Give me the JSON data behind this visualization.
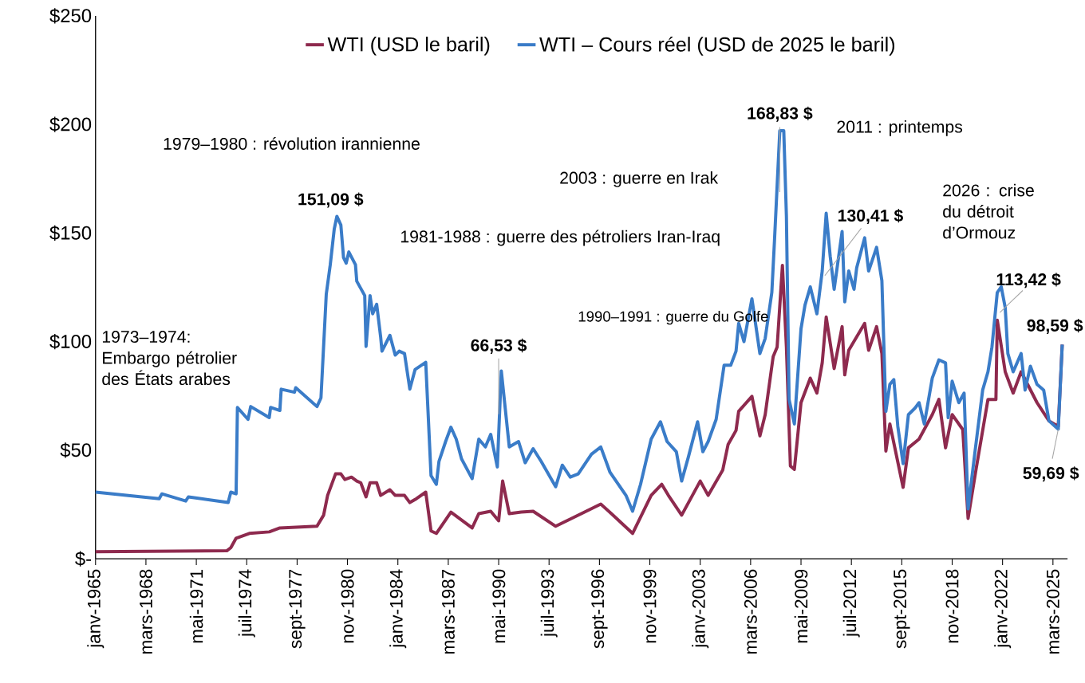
{
  "chart_data": {
    "type": "line",
    "xlim": [
      "1965-01",
      "2026-02"
    ],
    "ylim": [
      0,
      250
    ],
    "xticks": [
      {
        "value": "1965-01",
        "label": "janv-1965"
      },
      {
        "value": "1968-03",
        "label": "mars-1968"
      },
      {
        "value": "1971-05",
        "label": "mai-1971"
      },
      {
        "value": "1974-07",
        "label": "juil-1974"
      },
      {
        "value": "1977-09",
        "label": "sept-1977"
      },
      {
        "value": "1980-11",
        "label": "nov-1980"
      },
      {
        "value": "1984-01",
        "label": "janv-1984"
      },
      {
        "value": "1987-03",
        "label": "mars-1987"
      },
      {
        "value": "1990-05",
        "label": "mai-1990"
      },
      {
        "value": "1993-07",
        "label": "juil-1993"
      },
      {
        "value": "1996-09",
        "label": "sept-1996"
      },
      {
        "value": "1999-11",
        "label": "nov-1999"
      },
      {
        "value": "2003-01",
        "label": "janv-2003"
      },
      {
        "value": "2006-03",
        "label": "mars-2006"
      },
      {
        "value": "2009-05",
        "label": "mai-2009"
      },
      {
        "value": "2012-07",
        "label": "juil-2012"
      },
      {
        "value": "2015-09",
        "label": "sept-2015"
      },
      {
        "value": "2018-11",
        "label": "nov-2018"
      },
      {
        "value": "2022-01",
        "label": "janv-2022"
      },
      {
        "value": "2025-03",
        "label": "mars-2025"
      }
    ],
    "yticks": [
      {
        "value": 0,
        "label": "$-"
      },
      {
        "value": 50,
        "label": "$50"
      },
      {
        "value": 100,
        "label": "$100"
      },
      {
        "value": 150,
        "label": "$150"
      },
      {
        "value": 200,
        "label": "$200"
      },
      {
        "value": 250,
        "label": "$250"
      }
    ],
    "legend": "top",
    "series": [
      {
        "name": "WTI (USD le baril)",
        "color": "#8e2a4e",
        "x": [
          "1965-01",
          "1973-04",
          "1973-07",
          "1973-11",
          "1974-09",
          "1975-12",
          "1976-08",
          "1978-12",
          "1979-05",
          "1979-08",
          "1980-02",
          "1980-06",
          "1980-09",
          "1981-02",
          "1981-06",
          "1981-09",
          "1982-01",
          "1982-04",
          "1982-09",
          "1982-12",
          "1983-07",
          "1983-11",
          "1984-06",
          "1984-10",
          "1985-03",
          "1985-10",
          "1986-02",
          "1986-06",
          "1987-05",
          "1988-09",
          "1989-02",
          "1989-11",
          "1990-05",
          "1990-08",
          "1991-01",
          "1991-10",
          "1992-07",
          "1993-12",
          "1994-12",
          "1996-10",
          "1997-06",
          "1998-10",
          "1999-12",
          "2000-08",
          "2001-01",
          "2001-11",
          "2003-01",
          "2003-07",
          "2004-06",
          "2004-10",
          "2005-04",
          "2005-06",
          "2006-04",
          "2006-10",
          "2007-02",
          "2007-08",
          "2007-11",
          "2008-03",
          "2008-06",
          "2008-09",
          "2008-12",
          "2009-05",
          "2009-12",
          "2010-05",
          "2010-09",
          "2010-12",
          "2011-06",
          "2011-12",
          "2012-02",
          "2012-05",
          "2013-05",
          "2013-08",
          "2014-02",
          "2014-06",
          "2014-09",
          "2014-12",
          "2015-10",
          "2016-02",
          "2016-10",
          "2017-08",
          "2018-01",
          "2018-06",
          "2018-11",
          "2019-07",
          "2019-11",
          "2020-05",
          "2021-02",
          "2021-08",
          "2021-09",
          "2022-03",
          "2022-09",
          "2023-03",
          "2024-03",
          "2024-12",
          "2025-07",
          "2025-10"
        ],
        "values": [
          3.3,
          3.7,
          5.1,
          9.5,
          11.7,
          12.4,
          14.2,
          15.0,
          20.1,
          29.2,
          39.1,
          39.1,
          36.5,
          37.6,
          35.8,
          35.0,
          28.5,
          35.0,
          35.0,
          29.2,
          31.8,
          29.2,
          29.2,
          25.9,
          27.7,
          30.7,
          12.8,
          11.7,
          21.5,
          14.2,
          20.8,
          21.9,
          17.5,
          35.8,
          20.8,
          21.5,
          21.9,
          15.0,
          18.6,
          25.2,
          20.8,
          11.7,
          29.2,
          34.3,
          29.2,
          20.1,
          35.8,
          29.2,
          40.9,
          52.6,
          59.1,
          67.9,
          74.8,
          56.6,
          66.4,
          93.1,
          97.5,
          135.1,
          97.5,
          42.7,
          41.2,
          71.9,
          83.2,
          76.3,
          90.2,
          111.3,
          87.6,
          106.9,
          84.7,
          96.0,
          108.4,
          96.0,
          106.9,
          94.5,
          49.6,
          62.1,
          32.9,
          51.1,
          55.1,
          66.4,
          73.4,
          51.1,
          66.4,
          59.5,
          18.6,
          41.2,
          73.4,
          73.4,
          109.9,
          86.1,
          76.3,
          86.1,
          71.9,
          63.5,
          61.0,
          98.6
        ]
      },
      {
        "name": "WTI – Cours réel (USD de 2025 le baril)",
        "color": "#3a7cc8",
        "x": [
          "1965-01",
          "1969-01",
          "1969-03",
          "1970-09",
          "1970-11",
          "1973-05",
          "1973-07",
          "1973-11",
          "1973-12",
          "1974-08",
          "1974-10",
          "1975-12",
          "1976-01",
          "1976-08",
          "1976-09",
          "1977-07",
          "1977-08",
          "1978-12",
          "1979-03",
          "1979-07",
          "1979-10",
          "1980-01",
          "1980-03",
          "1980-06",
          "1980-08",
          "1980-10",
          "1980-12",
          "1981-05",
          "1981-06",
          "1981-12",
          "1982-01",
          "1982-04",
          "1982-06",
          "1982-09",
          "1982-12",
          "1983-01",
          "1983-07",
          "1983-11",
          "1984-02",
          "1984-06",
          "1984-10",
          "1985-02",
          "1985-10",
          "1986-02",
          "1986-06",
          "1986-08",
          "1987-01",
          "1987-05",
          "1987-09",
          "1988-01",
          "1988-09",
          "1989-02",
          "1989-07",
          "1989-11",
          "1990-04",
          "1990-07",
          "1991-01",
          "1991-08",
          "1992-01",
          "1992-07",
          "1993-01",
          "1993-12",
          "1994-05",
          "1994-11",
          "1995-05",
          "1996-03",
          "1996-10",
          "1997-05",
          "1998-05",
          "1998-10",
          "1999-04",
          "1999-12",
          "2000-07",
          "2000-12",
          "2001-07",
          "2001-11",
          "2002-04",
          "2002-11",
          "2003-03",
          "2003-07",
          "2004-01",
          "2004-07",
          "2004-12",
          "2005-04",
          "2005-06",
          "2005-10",
          "2006-04",
          "2006-10",
          "2007-02",
          "2007-07",
          "2007-09",
          "2008-01",
          "2008-04",
          "2008-06",
          "2008-08",
          "2008-12",
          "2009-05",
          "2009-08",
          "2009-12",
          "2010-05",
          "2010-09",
          "2010-12",
          "2011-03",
          "2011-06",
          "2011-12",
          "2012-02",
          "2012-05",
          "2012-09",
          "2012-11",
          "2013-05",
          "2013-08",
          "2014-02",
          "2014-06",
          "2014-09",
          "2014-12",
          "2015-03",
          "2015-06",
          "2015-10",
          "2016-02",
          "2016-07",
          "2016-10",
          "2017-02",
          "2017-08",
          "2018-01",
          "2018-06",
          "2018-08",
          "2018-11",
          "2019-04",
          "2019-08",
          "2019-11",
          "2020-04",
          "2020-10",
          "2021-02",
          "2021-05",
          "2021-09",
          "2021-12",
          "2022-03",
          "2022-05",
          "2022-09",
          "2023-03",
          "2023-06",
          "2023-10",
          "2024-03",
          "2024-08",
          "2024-12",
          "2025-07",
          "2025-10"
        ],
        "values": [
          30.7,
          27.7,
          29.9,
          26.6,
          28.5,
          25.9,
          30.7,
          29.9,
          69.7,
          64.2,
          70.1,
          65.0,
          69.7,
          68.3,
          78.1,
          76.7,
          78.8,
          70.1,
          74.1,
          121.9,
          135.4,
          151.8,
          157.7,
          153.7,
          138.7,
          136.1,
          141.3,
          135.4,
          127.8,
          121.2,
          97.8,
          121.2,
          112.8,
          117.2,
          102.2,
          95.6,
          102.9,
          93.8,
          95.6,
          94.5,
          78.1,
          87.2,
          90.5,
          38.3,
          34.3,
          44.9,
          54.0,
          60.6,
          55.1,
          46.0,
          36.9,
          55.1,
          51.5,
          57.3,
          42.3,
          86.5,
          51.5,
          54.0,
          44.2,
          50.7,
          44.9,
          33.2,
          43.1,
          37.6,
          39.1,
          48.2,
          51.5,
          39.8,
          29.2,
          21.9,
          34.3,
          55.1,
          63.1,
          54.0,
          49.3,
          35.8,
          46.7,
          63.1,
          49.3,
          54.0,
          64.2,
          89.1,
          89.1,
          95.6,
          108.4,
          100.0,
          119.7,
          94.5,
          101.5,
          122.6,
          146.4,
          197.1,
          197.1,
          157.7,
          73.4,
          62.1,
          105.9,
          116.8,
          125.2,
          112.8,
          132.5,
          159.1,
          139.4,
          124.1,
          150.7,
          118.3,
          132.5,
          124.1,
          134.0,
          147.8,
          132.5,
          143.4,
          128.1,
          67.9,
          80.3,
          82.5,
          61.0,
          43.8,
          66.4,
          69.4,
          71.9,
          62.1,
          83.2,
          91.6,
          90.2,
          65.0,
          81.8,
          71.9,
          76.3,
          23.0,
          48.2,
          77.7,
          86.1,
          97.5,
          122.6,
          125.2,
          115.7,
          94.5,
          86.1,
          94.5,
          77.7,
          88.7,
          80.3,
          77.7,
          63.5,
          59.7,
          98.6
        ]
      }
    ],
    "annotations": [
      "1973–1974: Embargo pétrolier des États arabes",
      "1979–1980 : révolution irannienne",
      "1981-1988 : guerre des pétroliers Iran-Iraq",
      "1990–1991 : guerre du Golfe",
      "2003 : guerre en Irak",
      "2011 : printemps",
      "2026 : crise du détroit d’Ormouz",
      {
        "text": "151,09 $",
        "x": "1980-03",
        "y": 157.7
      },
      {
        "text": "66,53 $",
        "x": "1990-05",
        "y": 66.53
      },
      {
        "text": "168,83 $",
        "x": "2008-01",
        "y": 168.83
      },
      {
        "text": "130,41 $",
        "x": "2010-11",
        "y": 130.41
      },
      {
        "text": "113,42 $",
        "x": "2021-11",
        "y": 113.42
      },
      {
        "text": "98,59 $",
        "x": "2025-10",
        "y": 98.59
      },
      {
        "text": "59,69 $",
        "x": "2025-07",
        "y": 59.69
      }
    ]
  }
}
